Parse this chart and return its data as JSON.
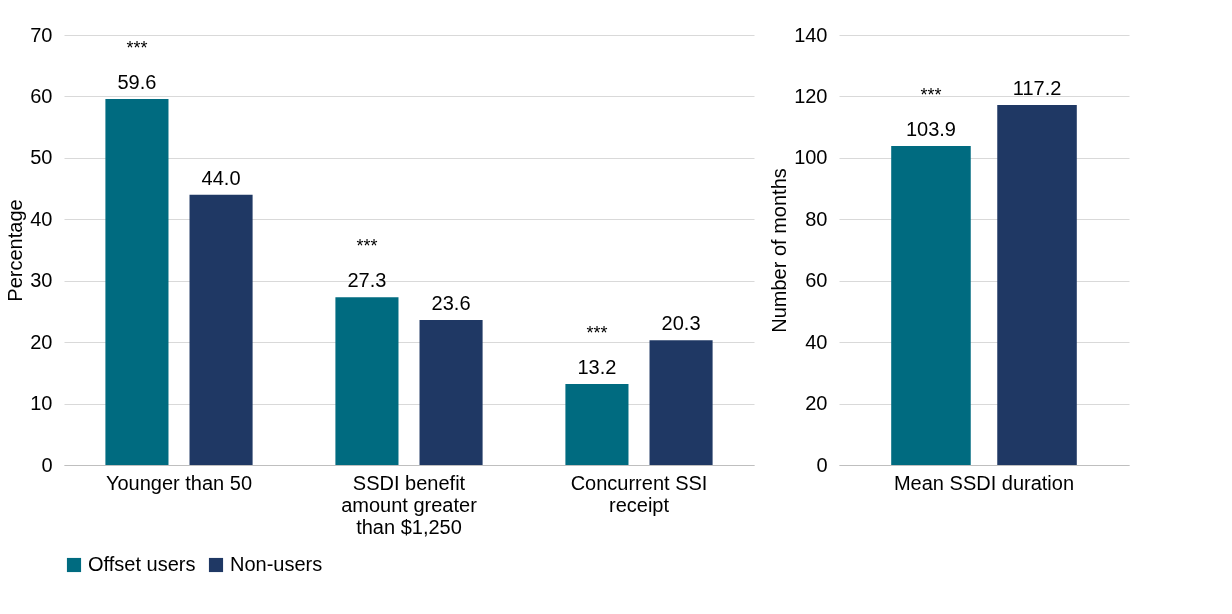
{
  "chart_data": [
    {
      "type": "bar",
      "ylabel": "Percentage",
      "categories": [
        "Younger than 50",
        "SSDI benefit amount greater than $1,250",
        "Concurrent SSI receipt"
      ],
      "series": [
        {
          "name": "Offset users",
          "color": "#006b80",
          "values": [
            59.6,
            27.3,
            13.2
          ],
          "value_labels": [
            "59.6",
            "27.3",
            "13.2"
          ]
        },
        {
          "name": "Non-users",
          "color": "#1f3864",
          "values": [
            44.0,
            23.6,
            20.3
          ],
          "value_labels": [
            "44.0",
            "23.6",
            "20.3"
          ]
        }
      ],
      "ylim": [
        0,
        70
      ],
      "yticks": [
        0,
        10,
        20,
        30,
        40,
        50,
        60,
        70
      ],
      "grid": "y",
      "legend": "bottom",
      "annotations": [
        "***",
        "***",
        "***"
      ]
    },
    {
      "type": "bar",
      "ylabel": "Number of months",
      "categories": [
        "Mean SSDI duration"
      ],
      "series": [
        {
          "color": "#006b80",
          "values": [
            103.9
          ],
          "value_labels": [
            "103.9"
          ]
        },
        {
          "color": "#1f3864",
          "values": [
            117.2
          ],
          "value_labels": [
            "117.2"
          ]
        }
      ],
      "ylim": [
        0,
        140
      ],
      "yticks": [
        0,
        20,
        40,
        60,
        80,
        100,
        120,
        140
      ],
      "grid": "y",
      "annotations": [
        "***"
      ]
    }
  ]
}
